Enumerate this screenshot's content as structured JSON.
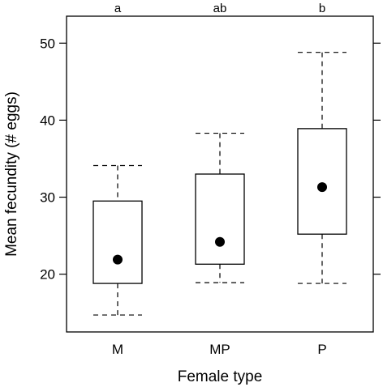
{
  "chart_data": {
    "type": "box",
    "xlabel": "Female type",
    "ylabel": "Mean fecundity (# eggs)",
    "ylim": [
      12.5,
      53.5
    ],
    "yticks": [
      20,
      30,
      40,
      50
    ],
    "grid": false,
    "categories": [
      "M",
      "MP",
      "P"
    ],
    "significance_letters": [
      "a",
      "ab",
      "b"
    ],
    "boxes": [
      {
        "category": "M",
        "whisker_low": 14.7,
        "q1": 18.8,
        "median": 21.9,
        "q3": 29.5,
        "whisker_high": 34.1
      },
      {
        "category": "MP",
        "whisker_low": 18.9,
        "q1": 21.3,
        "median": 24.2,
        "q3": 33.0,
        "whisker_high": 38.3
      },
      {
        "category": "P",
        "whisker_low": 18.8,
        "q1": 25.2,
        "median": 31.3,
        "q3": 38.9,
        "whisker_high": 48.8
      }
    ],
    "colors": {
      "box_fill": "#ffffff",
      "stroke": "#000000",
      "median_point": "#000000"
    }
  }
}
